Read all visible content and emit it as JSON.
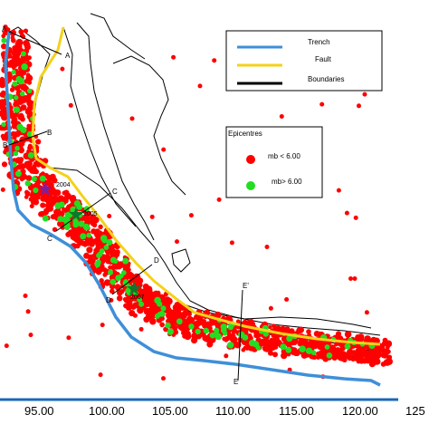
{
  "colors": {
    "trench": "#3f8fd8",
    "fault": "#f3d21a",
    "boundaries": "#000000",
    "epicentre_small": "#ff0000",
    "epicentre_large": "#22dd22",
    "axis": "#1a67b8"
  },
  "legend_lines": {
    "trench": "Trench",
    "fault": "Fault",
    "boundaries": "Boundaries"
  },
  "legend_epicentres": {
    "title": "Epicentres",
    "small": "mb < 6.00",
    "large": "mb> 6.00"
  },
  "x_axis": {
    "ticks": [
      "95.00",
      "100.00",
      "105.00",
      "110.00",
      "115.00",
      "120.00",
      "125"
    ]
  },
  "profiles": {
    "A": "A",
    "A_prime": "A",
    "B": "B",
    "B_prime": "B",
    "C": "C",
    "C_prime": "C",
    "D": "D",
    "D_prime": "D",
    "E": "E",
    "E_prime": "E'"
  },
  "event_labels": [
    "2004",
    "2005",
    "2007"
  ]
}
